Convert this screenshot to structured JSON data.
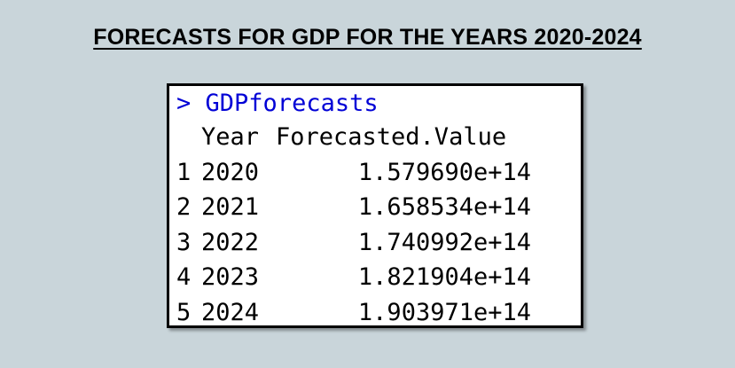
{
  "slide": {
    "title": "FORECASTS FOR GDP FOR THE YEARS 2020-2024"
  },
  "console": {
    "prompt": ">",
    "command": "GDPforecasts",
    "headers": {
      "year": "Year",
      "value": "Forecasted.Value"
    },
    "rows": [
      {
        "index": "1",
        "year": "2020",
        "value": "1.579690e+14"
      },
      {
        "index": "2",
        "year": "2021",
        "value": "1.658534e+14"
      },
      {
        "index": "3",
        "year": "2022",
        "value": "1.740992e+14"
      },
      {
        "index": "4",
        "year": "2023",
        "value": "1.821904e+14"
      },
      {
        "index": "5",
        "year": "2024",
        "value": "1.903971e+14"
      }
    ]
  },
  "colors": {
    "background": "#c9d5da",
    "prompt_blue": "#0000d6",
    "text": "#000000"
  }
}
